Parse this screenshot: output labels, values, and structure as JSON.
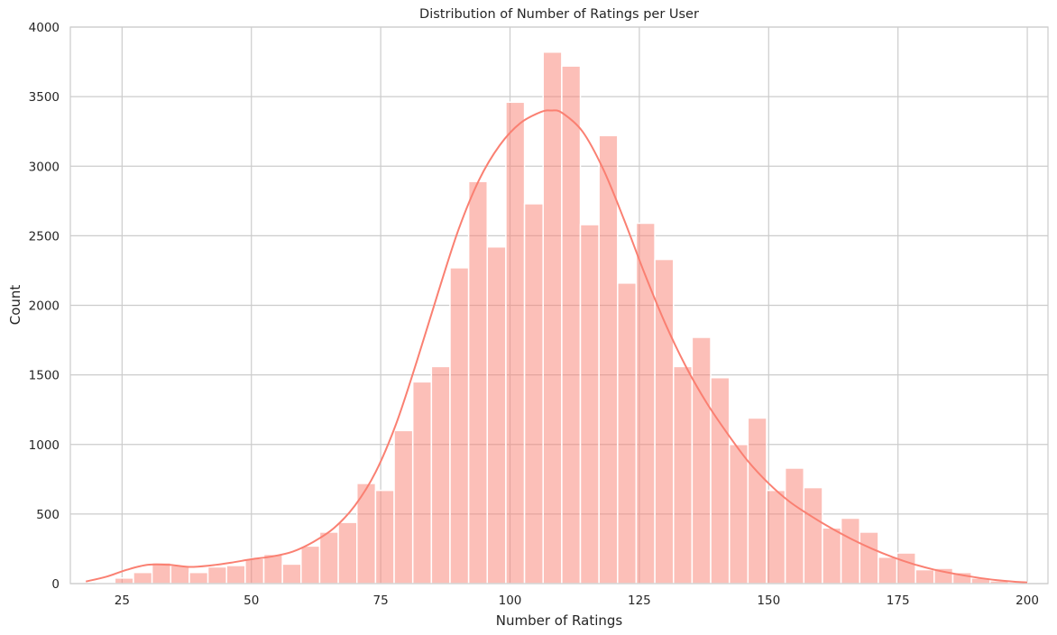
{
  "chart_data": {
    "type": "bar",
    "subtype": "histogram-with-kde",
    "title": "Distribution of Number of Ratings per User",
    "xlabel": "Number of Ratings",
    "ylabel": "Count",
    "xlim": [
      15,
      204
    ],
    "ylim": [
      0,
      4000
    ],
    "xticks": [
      25,
      50,
      75,
      100,
      125,
      150,
      175,
      200
    ],
    "yticks": [
      0,
      500,
      1000,
      1500,
      2000,
      2500,
      3000,
      3500,
      4000
    ],
    "grid": true,
    "colors": {
      "bar": "#fa8072",
      "bar_opacity": 0.5,
      "kde": "#fa8072",
      "grid": "#cccccc",
      "frame": "#cccccc"
    },
    "bins": {
      "start": 20,
      "width": 3.6,
      "values": [
        10,
        40,
        80,
        150,
        130,
        80,
        120,
        130,
        180,
        210,
        140,
        270,
        370,
        440,
        720,
        670,
        1100,
        1450,
        1560,
        2270,
        2890,
        2420,
        3460,
        2730,
        3820,
        3720,
        2580,
        3220,
        2160,
        2590,
        2330,
        1560,
        1770,
        1480,
        1000,
        1190,
        670,
        830,
        690,
        400,
        470,
        370,
        190,
        220,
        100,
        110,
        80,
        40,
        20,
        10
      ]
    },
    "kde": {
      "x": [
        18,
        22,
        26,
        30,
        34,
        38,
        42,
        46,
        50,
        54,
        58,
        62,
        66,
        70,
        74,
        78,
        82,
        86,
        90,
        94,
        98,
        102,
        106,
        108,
        110,
        114,
        118,
        122,
        126,
        130,
        134,
        138,
        142,
        146,
        150,
        154,
        158,
        162,
        166,
        170,
        174,
        178,
        182,
        186,
        190,
        194,
        198,
        200
      ],
      "y": [
        15,
        50,
        100,
        135,
        135,
        120,
        130,
        150,
        175,
        195,
        230,
        300,
        400,
        560,
        800,
        1150,
        1600,
        2080,
        2540,
        2900,
        3150,
        3310,
        3390,
        3400,
        3385,
        3250,
        2980,
        2620,
        2230,
        1870,
        1560,
        1300,
        1080,
        880,
        720,
        590,
        490,
        400,
        320,
        250,
        190,
        140,
        100,
        70,
        45,
        25,
        12,
        8
      ]
    }
  }
}
